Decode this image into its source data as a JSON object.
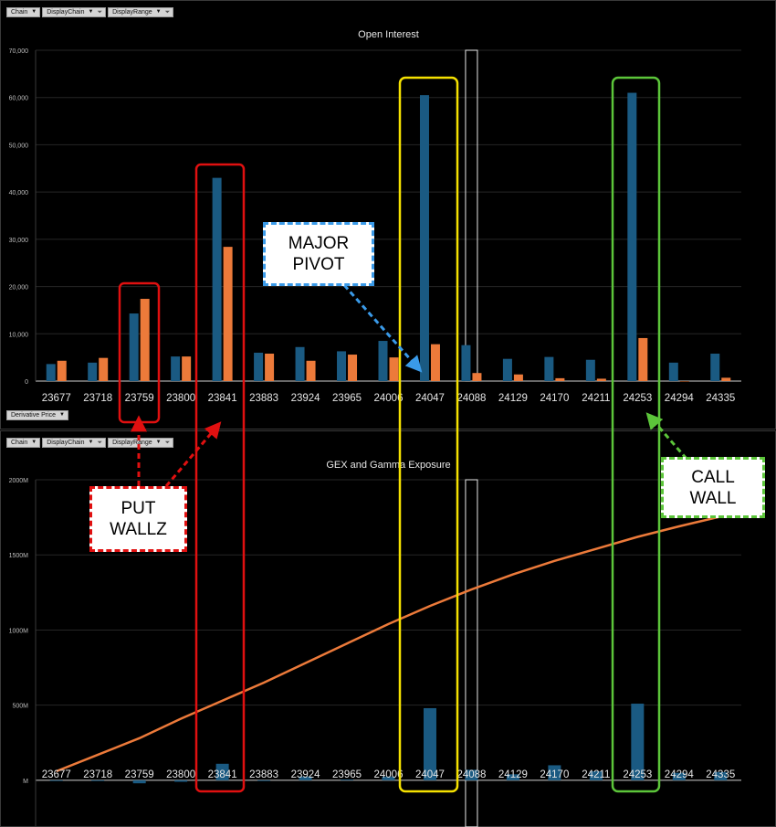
{
  "toolbar": {
    "chain_label": "Chain",
    "display_chain_label": "DisplayChain",
    "display_range_label": "DisplayRange",
    "derivative_price_label": "Derivative Price"
  },
  "colors": {
    "series_blue": "#1a5a82",
    "series_orange": "#ec7a3a",
    "gex_line": "#ec7a3a",
    "put_wall": "#e01010",
    "major_pivot": "#f5e100",
    "call_wall": "#5cc53a",
    "pivot_callout_border": "#3a9ae8",
    "put_callout_border": "#e01010",
    "call_callout_border": "#5cc53a"
  },
  "annotations": {
    "major_pivot": [
      "MAJOR",
      "PIVOT"
    ],
    "put_wall": [
      "PUT",
      "WALLZ"
    ],
    "call_wall": [
      "CALL",
      "WALL"
    ]
  },
  "chart_data": [
    {
      "type": "bar",
      "title": "Open Interest",
      "categories": [
        "23677",
        "23718",
        "23759",
        "23800",
        "23841",
        "23883",
        "23924",
        "23965",
        "24006",
        "24047",
        "24088",
        "24129",
        "24170",
        "24211",
        "24253",
        "24294",
        "24335"
      ],
      "series": [
        {
          "values": [
            3600,
            3900,
            14300,
            5200,
            43000,
            6000,
            7200,
            6300,
            8500,
            60500,
            7600,
            4700,
            5100,
            4500,
            61000,
            3900,
            5800
          ]
        },
        {
          "values": [
            4300,
            4900,
            17400,
            5200,
            28400,
            5800,
            4300,
            5600,
            5000,
            7800,
            1700,
            1400,
            600,
            500,
            9100,
            0,
            700
          ]
        }
      ],
      "ylim": [
        0,
        70000
      ],
      "yticks": [
        "0",
        "10,000",
        "20,000",
        "30,000",
        "40,000",
        "50,000",
        "60,000",
        "70,000"
      ],
      "ytick_values": [
        0,
        10000,
        20000,
        30000,
        40000,
        50000,
        60000,
        70000
      ],
      "highlight_category": "24088",
      "grid": true
    },
    {
      "type": "bar",
      "title": "GEX and Gamma Exposure",
      "categories": [
        "23677",
        "23718",
        "23759",
        "23800",
        "23841",
        "23883",
        "23924",
        "23965",
        "24006",
        "24047",
        "24088",
        "24129",
        "24170",
        "24211",
        "24253",
        "24294",
        "24335"
      ],
      "series": [
        {
          "values": [
            -5,
            -5,
            -20,
            -10,
            110,
            -5,
            25,
            5,
            25,
            480,
            70,
            40,
            100,
            60,
            510,
            50,
            55
          ]
        },
        {
          "type": "line",
          "values": [
            60,
            170,
            280,
            410,
            530,
            650,
            780,
            910,
            1040,
            1160,
            1270,
            1370,
            1460,
            1540,
            1620,
            1690,
            1755
          ]
        }
      ],
      "ylim": [
        -250,
        2000
      ],
      "yticks": [
        "M",
        "500M",
        "1000M",
        "1500M",
        "2000M"
      ],
      "ytick_values": [
        0,
        500,
        1000,
        1500,
        2000
      ],
      "highlight_category": "24088",
      "grid": true
    }
  ]
}
